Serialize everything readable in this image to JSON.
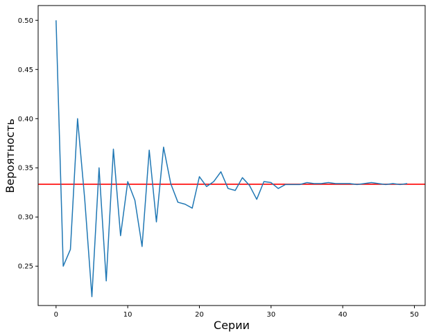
{
  "chart_data": {
    "type": "line",
    "title": "",
    "xlabel": "Серии",
    "ylabel": "Вероятность",
    "xlim": [
      -2.5,
      51.5
    ],
    "ylim": [
      0.21,
      0.515
    ],
    "xticks": [
      0,
      10,
      20,
      30,
      40,
      50
    ],
    "yticks": [
      0.25,
      0.3,
      0.35,
      0.4,
      0.45,
      0.5
    ],
    "grid": false,
    "legend": "none",
    "series": [
      {
        "color": "#1f77b4",
        "x": [
          0,
          1,
          2,
          3,
          4,
          5,
          6,
          7,
          8,
          9,
          10,
          11,
          12,
          13,
          14,
          15,
          16,
          17,
          18,
          19,
          20,
          21,
          22,
          23,
          24,
          25,
          26,
          27,
          28,
          29,
          30,
          31,
          32,
          33,
          34,
          35,
          36,
          37,
          38,
          39,
          40,
          41,
          42,
          43,
          44,
          45,
          46,
          47,
          48,
          49
        ],
        "values": [
          0.5,
          0.25,
          0.267,
          0.4,
          0.318,
          0.219,
          0.35,
          0.235,
          0.369,
          0.281,
          0.336,
          0.317,
          0.27,
          0.368,
          0.295,
          0.371,
          0.334,
          0.315,
          0.313,
          0.309,
          0.341,
          0.331,
          0.336,
          0.346,
          0.329,
          0.327,
          0.34,
          0.332,
          0.318,
          0.336,
          0.335,
          0.329,
          0.333,
          0.333,
          0.333,
          0.335,
          0.334,
          0.334,
          0.335,
          0.334,
          0.334,
          0.334,
          0.333,
          0.334,
          0.335,
          0.334,
          0.333,
          0.334,
          0.333,
          0.334
        ]
      }
    ],
    "reference_line": {
      "orientation": "horizontal",
      "value": 0.3333,
      "color": "#ff0000"
    }
  }
}
